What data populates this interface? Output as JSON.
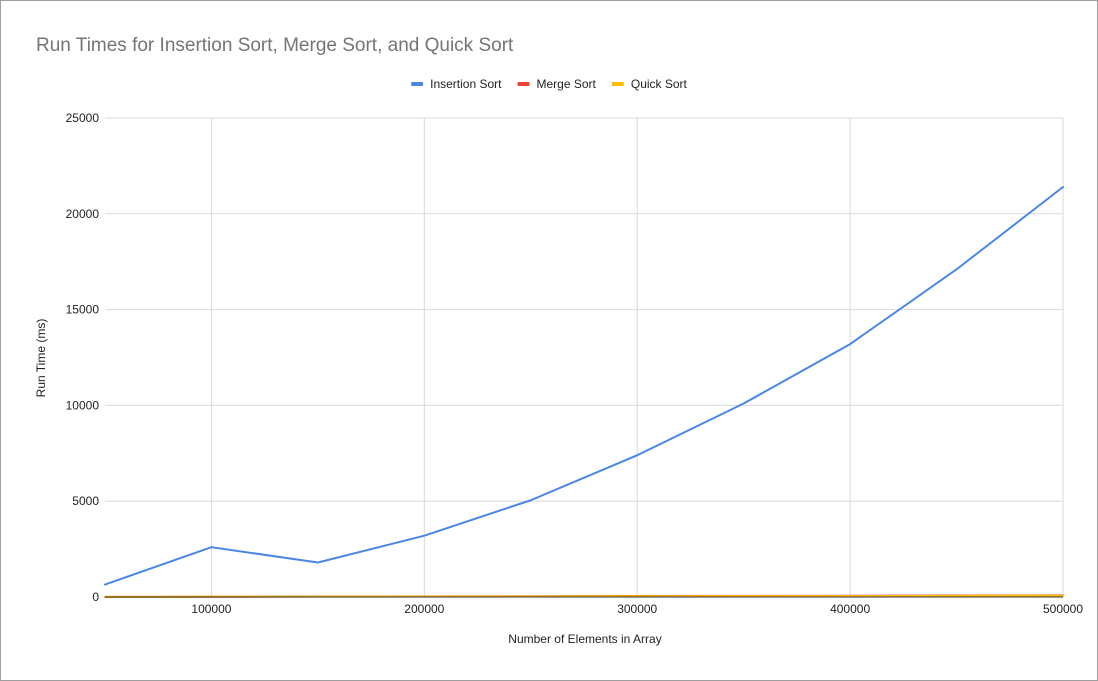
{
  "chart_data": {
    "type": "line",
    "title": "Run Times for Insertion Sort, Merge Sort, and Quick Sort",
    "xlabel": "Number of Elements in Array",
    "ylabel": "Run Time (ms)",
    "xlim": [
      50000,
      500000
    ],
    "ylim": [
      0,
      25000
    ],
    "x_ticks": [
      "100000",
      "200000",
      "300000",
      "400000",
      "500000"
    ],
    "y_ticks": [
      "0",
      "5000",
      "10000",
      "15000",
      "20000",
      "25000"
    ],
    "grid": true,
    "legend_position": "top",
    "x": [
      50000,
      100000,
      150000,
      200000,
      250000,
      300000,
      350000,
      400000,
      450000,
      500000
    ],
    "series": [
      {
        "name": "Insertion Sort",
        "color": "#4a86e8",
        "values": [
          650,
          2600,
          1800,
          3200,
          5050,
          7400,
          10100,
          13200,
          17100,
          21400
        ]
      },
      {
        "name": "Merge Sort",
        "color": "#ea4335",
        "values": [
          8,
          16,
          24,
          33,
          41,
          50,
          58,
          67,
          76,
          85
        ]
      },
      {
        "name": "Quick Sort",
        "color": "#fbbc04",
        "values": [
          6,
          12,
          18,
          25,
          31,
          38,
          44,
          51,
          58,
          65
        ]
      }
    ]
  }
}
